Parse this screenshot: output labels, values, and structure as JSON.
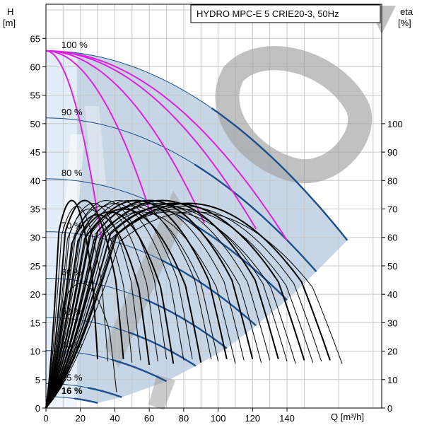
{
  "chart_data": {
    "type": "line",
    "title": "HYDRO MPC-E 5 CRIE20-3, 50Hz",
    "left_axis": {
      "label_line1": "H",
      "label_line2": "[m]",
      "range": [
        0,
        71
      ],
      "ticks": [
        0,
        5,
        10,
        15,
        20,
        25,
        30,
        35,
        40,
        45,
        50,
        55,
        60,
        65
      ]
    },
    "right_axis": {
      "label_line1": "eta",
      "label_line2": "[%]",
      "range": [
        0,
        142
      ],
      "ticks": [
        0,
        10,
        20,
        30,
        40,
        50,
        60,
        70,
        80,
        90,
        100
      ]
    },
    "x_axis": {
      "label": "Q [m³/h]",
      "range": [
        0,
        195
      ],
      "ticks": [
        0,
        20,
        40,
        60,
        80,
        100,
        120,
        140
      ]
    },
    "grid": true,
    "speed_curves": [
      {
        "name": "100 %",
        "H0": 62.8,
        "Qmax": 175,
        "Hend": 29.5
      },
      {
        "name": "90 %",
        "H0": 51.0,
        "Qmax": 157,
        "Hend": 24.0
      },
      {
        "name": "80 %",
        "H0": 40.3,
        "Qmax": 140,
        "Hend": 19.0
      },
      {
        "name": "70 %",
        "H0": 31.0,
        "Qmax": 122,
        "Hend": 14.5
      },
      {
        "name": "60 %",
        "H0": 22.8,
        "Qmax": 105,
        "Hend": 10.5
      },
      {
        "name": "50 %",
        "H0": 15.9,
        "Qmax": 87,
        "Hend": 7.4
      },
      {
        "name": "40 %",
        "H0": 10.1,
        "Qmax": 70,
        "Hend": 4.7
      },
      {
        "name": "25 %",
        "H0": 4.3,
        "Qmax": 44,
        "Hend": 1.9
      },
      {
        "name": "16 %",
        "H0": 2.0,
        "Qmax": 30,
        "Hend": 0.9
      }
    ],
    "system_curves": [
      {
        "Qend": 32,
        "Hend": 30
      },
      {
        "Qend": 61,
        "Hend": 34
      },
      {
        "Qend": 92,
        "Hend": 32.5
      },
      {
        "Qend": 122,
        "Hend": 31.5
      },
      {
        "Qend": 140,
        "Hend": 29.5
      }
    ],
    "efficiency_curves": [
      {
        "Qmax": 30,
        "peak": 73
      },
      {
        "Qmax": 36,
        "peak": 71
      },
      {
        "Qmax": 41,
        "peak": 44
      },
      {
        "Qmax": 45,
        "peak": 73
      },
      {
        "Qmax": 50,
        "peak": 70
      },
      {
        "Qmax": 55,
        "peak": 72
      },
      {
        "Qmax": 60,
        "peak": 68
      },
      {
        "Qmax": 65,
        "peak": 71
      },
      {
        "Qmax": 70,
        "peak": 73
      },
      {
        "Qmax": 74,
        "peak": 69
      },
      {
        "Qmax": 80,
        "peak": 72
      },
      {
        "Qmax": 85,
        "peak": 73
      },
      {
        "Qmax": 90,
        "peak": 70
      },
      {
        "Qmax": 96,
        "peak": 73
      },
      {
        "Qmax": 100,
        "peak": 71
      },
      {
        "Qmax": 105,
        "peak": 73
      },
      {
        "Qmax": 110,
        "peak": 69
      },
      {
        "Qmax": 115,
        "peak": 72
      },
      {
        "Qmax": 120,
        "peak": 73
      },
      {
        "Qmax": 125,
        "peak": 70
      },
      {
        "Qmax": 130,
        "peak": 72
      },
      {
        "Qmax": 135,
        "peak": 73
      },
      {
        "Qmax": 140,
        "peak": 71
      },
      {
        "Qmax": 145,
        "peak": 69
      },
      {
        "Qmax": 150,
        "peak": 72
      },
      {
        "Qmax": 155,
        "peak": 70
      },
      {
        "Qmax": 160,
        "peak": 71
      },
      {
        "Qmax": 165,
        "peak": 72
      },
      {
        "Qmax": 172,
        "peak": 69
      }
    ],
    "colors": {
      "operating_area": "#c6d6e6",
      "speed_curve": "#1a4f8c",
      "system_curve": "#e020e0",
      "efficiency_curve": "#000000",
      "grid": "#c8c8c8",
      "watermark": "#a0a0a0"
    }
  }
}
